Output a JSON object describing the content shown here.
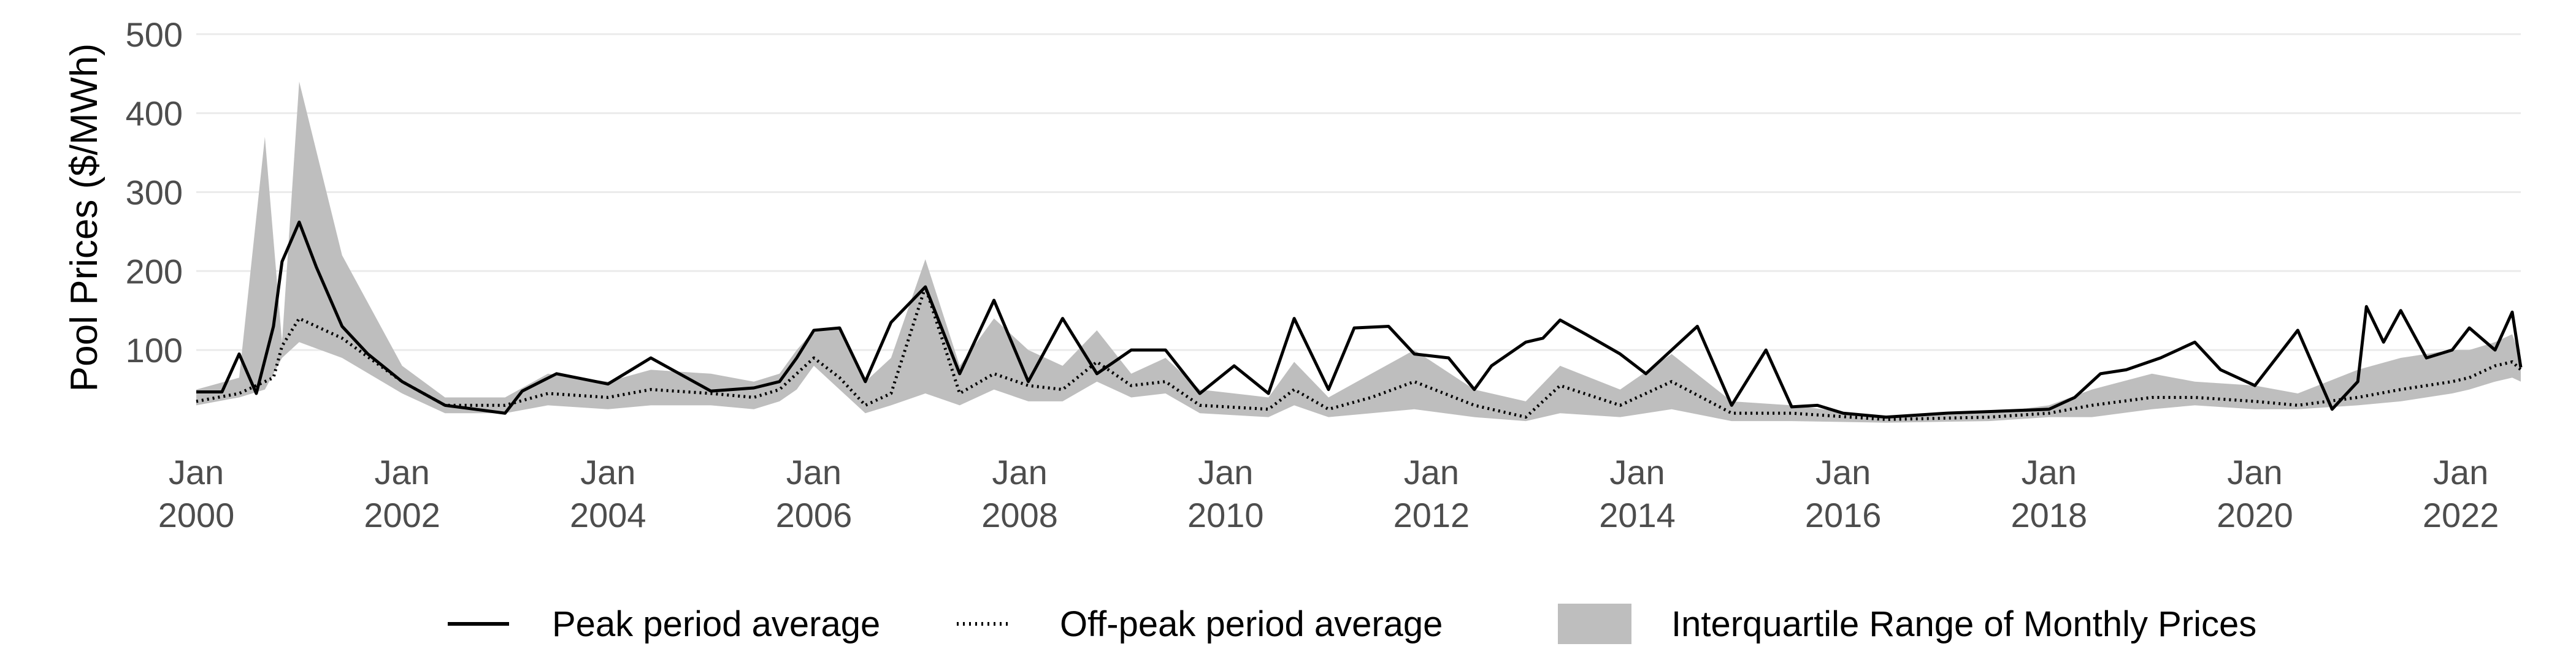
{
  "chart_data": {
    "type": "line",
    "title": "",
    "xlabel": "",
    "ylabel": "Pool Prices ($/MWh)",
    "ylim": [
      0,
      520
    ],
    "xlim": [
      "2000-01",
      "2022-08"
    ],
    "y_ticks": [
      100,
      200,
      300,
      400,
      500
    ],
    "y_tick_labels": [
      "100",
      "200",
      "300",
      "400",
      "500"
    ],
    "x_ticks": [
      {
        "x": "2000-01",
        "line1": "Jan",
        "line2": "2000"
      },
      {
        "x": "2002-01",
        "line1": "Jan",
        "line2": "2002"
      },
      {
        "x": "2004-01",
        "line1": "Jan",
        "line2": "2004"
      },
      {
        "x": "2006-01",
        "line1": "Jan",
        "line2": "2006"
      },
      {
        "x": "2008-01",
        "line1": "Jan",
        "line2": "2008"
      },
      {
        "x": "2010-01",
        "line1": "Jan",
        "line2": "2010"
      },
      {
        "x": "2012-01",
        "line1": "Jan",
        "line2": "2012"
      },
      {
        "x": "2014-01",
        "line1": "Jan",
        "line2": "2014"
      },
      {
        "x": "2016-01",
        "line1": "Jan",
        "line2": "2016"
      },
      {
        "x": "2018-01",
        "line1": "Jan",
        "line2": "2018"
      },
      {
        "x": "2020-01",
        "line1": "Jan",
        "line2": "2020"
      },
      {
        "x": "2022-01",
        "line1": "Jan",
        "line2": "2022"
      }
    ],
    "grid": true,
    "legend_position": "bottom",
    "colors": {
      "peak": "#000000",
      "offpeak": "#000000",
      "iqr": "#bebebe",
      "grid": "#ebebeb"
    },
    "series": [
      {
        "name": "Peak period average",
        "style": "solid",
        "x": [
          "2000-01",
          "2000-04",
          "2000-06",
          "2000-08",
          "2000-10",
          "2000-11",
          "2001-01",
          "2001-03",
          "2001-06",
          "2001-09",
          "2002-01",
          "2002-06",
          "2003-01",
          "2003-03",
          "2003-07",
          "2004-01",
          "2004-06",
          "2005-01",
          "2005-06",
          "2005-09",
          "2005-11",
          "2006-01",
          "2006-04",
          "2006-07",
          "2006-10",
          "2007-02",
          "2007-06",
          "2007-10",
          "2008-02",
          "2008-06",
          "2008-10",
          "2009-02",
          "2009-06",
          "2009-10",
          "2010-02",
          "2010-06",
          "2010-09",
          "2011-01",
          "2011-04",
          "2011-08",
          "2011-11",
          "2012-03",
          "2012-06",
          "2012-08",
          "2012-12",
          "2013-02",
          "2013-04",
          "2013-07",
          "2013-11",
          "2014-02",
          "2014-05",
          "2014-08",
          "2014-12",
          "2015-04",
          "2015-07",
          "2015-10",
          "2016-01",
          "2016-06",
          "2017-01",
          "2017-06",
          "2018-01",
          "2018-04",
          "2018-07",
          "2018-10",
          "2019-02",
          "2019-06",
          "2019-09",
          "2020-01",
          "2020-06",
          "2020-10",
          "2021-01",
          "2021-02",
          "2021-04",
          "2021-06",
          "2021-09",
          "2021-12",
          "2022-02",
          "2022-05",
          "2022-07",
          "2022-08"
        ],
        "values": [
          47,
          47,
          95,
          45,
          130,
          212,
          262,
          205,
          130,
          95,
          60,
          30,
          20,
          48,
          70,
          57,
          90,
          48,
          52,
          60,
          90,
          125,
          128,
          60,
          135,
          180,
          70,
          163,
          60,
          140,
          70,
          100,
          100,
          45,
          80,
          45,
          140,
          50,
          128,
          130,
          95,
          90,
          50,
          80,
          110,
          115,
          138,
          120,
          95,
          70,
          100,
          130,
          30,
          100,
          28,
          30,
          20,
          15,
          20,
          22,
          25,
          40,
          70,
          75,
          90,
          110,
          75,
          55,
          125,
          25,
          60,
          155,
          110,
          150,
          90,
          100,
          128,
          100,
          148,
          78
        ]
      },
      {
        "name": "Off-peak period average",
        "style": "dotted",
        "x": [
          "2000-01",
          "2000-06",
          "2000-10",
          "2000-11",
          "2001-01",
          "2001-06",
          "2002-01",
          "2002-06",
          "2003-01",
          "2003-06",
          "2004-01",
          "2004-06",
          "2005-01",
          "2005-06",
          "2005-09",
          "2005-11",
          "2006-01",
          "2006-04",
          "2006-07",
          "2006-10",
          "2007-02",
          "2007-06",
          "2007-10",
          "2008-02",
          "2008-06",
          "2008-10",
          "2009-02",
          "2009-06",
          "2009-10",
          "2010-06",
          "2010-09",
          "2011-01",
          "2011-06",
          "2011-11",
          "2012-06",
          "2012-12",
          "2013-04",
          "2013-11",
          "2014-05",
          "2014-12",
          "2015-07",
          "2016-06",
          "2017-06",
          "2018-01",
          "2018-06",
          "2019-01",
          "2019-06",
          "2020-01",
          "2020-06",
          "2021-01",
          "2021-06",
          "2021-12",
          "2022-02",
          "2022-05",
          "2022-07",
          "2022-08"
        ],
        "values": [
          35,
          45,
          65,
          105,
          140,
          115,
          60,
          30,
          30,
          45,
          40,
          50,
          45,
          40,
          50,
          70,
          90,
          65,
          30,
          45,
          180,
          45,
          70,
          55,
          50,
          85,
          55,
          60,
          30,
          25,
          50,
          25,
          40,
          60,
          30,
          15,
          55,
          30,
          60,
          20,
          20,
          12,
          15,
          20,
          30,
          40,
          40,
          35,
          30,
          40,
          50,
          60,
          65,
          80,
          85,
          75
        ]
      },
      {
        "name": "Interquartile Range of Monthly Prices",
        "style": "band",
        "x": [
          "2000-01",
          "2000-06",
          "2000-09",
          "2000-11",
          "2001-01",
          "2001-06",
          "2002-01",
          "2002-06",
          "2003-01",
          "2003-06",
          "2004-01",
          "2004-06",
          "2005-01",
          "2005-06",
          "2005-09",
          "2005-11",
          "2006-01",
          "2006-04",
          "2006-07",
          "2006-10",
          "2007-02",
          "2007-06",
          "2007-10",
          "2008-02",
          "2008-06",
          "2008-10",
          "2009-02",
          "2009-06",
          "2009-10",
          "2010-06",
          "2010-09",
          "2011-01",
          "2011-06",
          "2011-11",
          "2012-06",
          "2012-12",
          "2013-04",
          "2013-11",
          "2014-05",
          "2014-12",
          "2015-07",
          "2016-06",
          "2017-06",
          "2018-01",
          "2018-06",
          "2019-01",
          "2019-06",
          "2020-01",
          "2020-06",
          "2021-01",
          "2021-06",
          "2021-12",
          "2022-02",
          "2022-05",
          "2022-07",
          "2022-08"
        ],
        "low": [
          30,
          40,
          50,
          90,
          110,
          90,
          45,
          20,
          20,
          30,
          25,
          30,
          30,
          25,
          35,
          50,
          80,
          50,
          20,
          30,
          45,
          30,
          50,
          35,
          35,
          60,
          40,
          45,
          20,
          15,
          30,
          15,
          20,
          25,
          15,
          10,
          20,
          15,
          25,
          10,
          10,
          8,
          10,
          15,
          15,
          25,
          30,
          25,
          25,
          30,
          35,
          45,
          50,
          60,
          65,
          60
        ],
        "high": [
          50,
          65,
          370,
          110,
          440,
          220,
          80,
          40,
          40,
          70,
          60,
          75,
          70,
          60,
          70,
          100,
          125,
          130,
          60,
          90,
          215,
          80,
          140,
          100,
          80,
          125,
          70,
          90,
          50,
          40,
          85,
          40,
          70,
          100,
          50,
          35,
          80,
          50,
          95,
          35,
          30,
          15,
          20,
          30,
          50,
          70,
          60,
          55,
          45,
          75,
          90,
          100,
          100,
          110,
          120,
          90
        ]
      }
    ]
  },
  "legend": {
    "items": [
      {
        "label": "Peak period average"
      },
      {
        "label": "Off-peak period average"
      },
      {
        "label": "Interquartile Range of Monthly Prices"
      }
    ]
  }
}
